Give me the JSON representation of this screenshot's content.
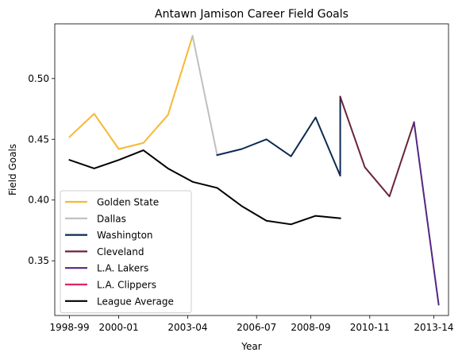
{
  "chart_data": {
    "type": "line",
    "title": "Antawn Jamison Career Field Goals",
    "xlabel": "Year",
    "ylabel": "Field Goals",
    "x_ticks": [
      "1998-99",
      "2000-01",
      "2003-04",
      "2006-07",
      "2008-09",
      "2010-11",
      "2013-14"
    ],
    "x_tick_positions": [
      0,
      2,
      4.8,
      7.6,
      9.8,
      12.2,
      14.8
    ],
    "xlim": [
      -0.6,
      15.4
    ],
    "ylim": [
      0.305,
      0.545
    ],
    "y_ticks": [
      0.35,
      0.4,
      0.45,
      0.5
    ],
    "y_tick_labels": [
      "0.35",
      "0.40",
      "0.45",
      "0.50"
    ],
    "grid": false,
    "legend_position": "lower-left",
    "series": [
      {
        "name": "Golden State",
        "color": "#F5B935",
        "points": [
          [
            0,
            0.452
          ],
          [
            1,
            0.471
          ],
          [
            2,
            0.442
          ],
          [
            3,
            0.447
          ],
          [
            4,
            0.47
          ],
          [
            5,
            0.535
          ]
        ]
      },
      {
        "name": "Dallas",
        "color": "#BFBFBF",
        "points": [
          [
            5,
            0.535
          ],
          [
            6,
            0.437
          ]
        ]
      },
      {
        "name": "Washington",
        "color": "#0D2A51",
        "points": [
          [
            6,
            0.437
          ],
          [
            7,
            0.442
          ],
          [
            8,
            0.45
          ],
          [
            9,
            0.436
          ],
          [
            10,
            0.468
          ],
          [
            11,
            0.42
          ],
          [
            11,
            0.485
          ]
        ]
      },
      {
        "name": "Cleveland",
        "color": "#6B2339",
        "points": [
          [
            11,
            0.485
          ],
          [
            12,
            0.427
          ],
          [
            13,
            0.403
          ],
          [
            14,
            0.464
          ]
        ]
      },
      {
        "name": "L.A. Lakers",
        "color": "#552583",
        "points": [
          [
            14,
            0.464
          ],
          [
            15,
            0.314
          ]
        ]
      },
      {
        "name": "L.A. Clippers",
        "color": "#E0245E",
        "points": []
      },
      {
        "name": "League Average",
        "color": "#000000",
        "points": [
          [
            0,
            0.433
          ],
          [
            1,
            0.426
          ],
          [
            2,
            0.433
          ],
          [
            3,
            0.441
          ],
          [
            4,
            0.426
          ],
          [
            5,
            0.415
          ],
          [
            6,
            0.41
          ],
          [
            7,
            0.395
          ],
          [
            8,
            0.383
          ],
          [
            9,
            0.38
          ],
          [
            10,
            0.387
          ],
          [
            11,
            0.385
          ]
        ]
      }
    ]
  }
}
